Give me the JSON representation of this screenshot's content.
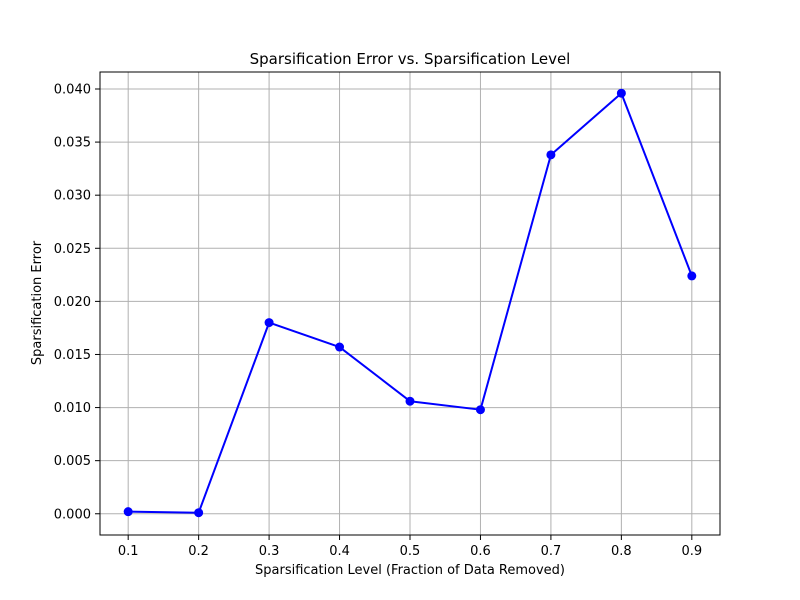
{
  "chart_data": {
    "type": "line",
    "title": "Sparsification Error vs. Sparsification Level",
    "xlabel": "Sparsification Level (Fraction of Data Removed)",
    "ylabel": "Sparsification Error",
    "x": [
      0.1,
      0.2,
      0.3,
      0.4,
      0.5,
      0.6,
      0.7,
      0.8,
      0.9
    ],
    "series": [
      {
        "values": [
          0.0002,
          0.0001,
          0.018,
          0.0157,
          0.0106,
          0.0098,
          0.0338,
          0.0396,
          0.0224
        ],
        "color": "#0000ff",
        "marker": "circle"
      }
    ],
    "xlim": [
      0.06,
      0.94
    ],
    "ylim": [
      -0.002,
      0.0416
    ],
    "xticks": [
      "0.1",
      "0.2",
      "0.3",
      "0.4",
      "0.5",
      "0.6",
      "0.7",
      "0.8",
      "0.9"
    ],
    "yticks": [
      "0.000",
      "0.005",
      "0.010",
      "0.015",
      "0.020",
      "0.025",
      "0.030",
      "0.035",
      "0.040"
    ],
    "grid": true
  }
}
